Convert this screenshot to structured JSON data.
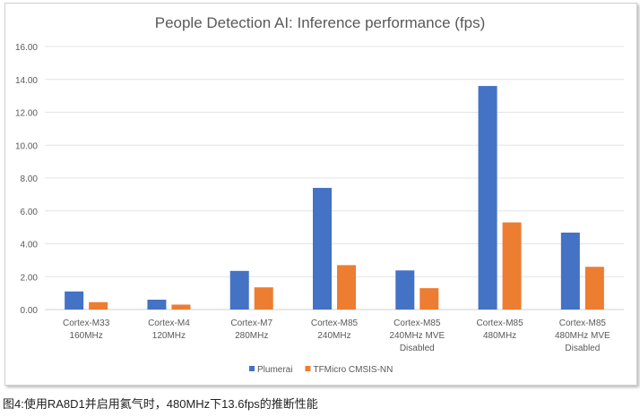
{
  "chart_data": {
    "type": "bar",
    "title": "People Detection AI: Inference performance (fps)",
    "categories": [
      [
        "Cortex-M33",
        "160MHz"
      ],
      [
        "Cortex-M4",
        "120MHz"
      ],
      [
        "Cortex-M7",
        "280MHz"
      ],
      [
        "Cortex-M85",
        "240MHz"
      ],
      [
        "Cortex-M85",
        "240MHz MVE",
        "Disabled"
      ],
      [
        "Cortex-M85",
        "480MHz"
      ],
      [
        "Cortex-M85",
        "480MHz MVE",
        "Disabled"
      ]
    ],
    "series": [
      {
        "name": "Plumerai",
        "color": "#4472c4",
        "values": [
          1.1,
          0.6,
          2.35,
          7.4,
          2.38,
          13.6,
          4.68
        ]
      },
      {
        "name": "TFMicro CMSIS-NN",
        "color": "#ed7d31",
        "values": [
          0.45,
          0.3,
          1.35,
          2.7,
          1.3,
          5.3,
          2.6
        ]
      }
    ],
    "ylim": [
      0,
      16
    ],
    "yticks": [
      "0.00",
      "2.00",
      "4.00",
      "6.00",
      "8.00",
      "10.00",
      "12.00",
      "14.00",
      "16.00"
    ],
    "grid": true,
    "legend": "bottom"
  },
  "caption": "图4:使用RA8D1并启用氦气时，480MHz下13.6fps的推断性能"
}
